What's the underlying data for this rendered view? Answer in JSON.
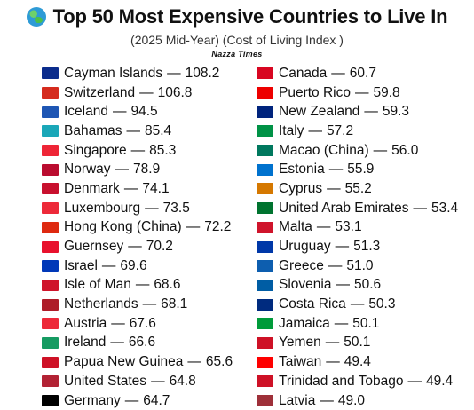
{
  "header": {
    "title": "Top 50 Most Expensive Countries to Live In",
    "subtitle": "(2025 Mid-Year) (Cost of Living Index )",
    "brand": "Nazza Times",
    "globe_icon": "globe-icon"
  },
  "separator": "—",
  "left_column": [
    {
      "country": "Cayman Islands",
      "value": "108.2",
      "flag": "#0b2c8c"
    },
    {
      "country": "Switzerland",
      "value": "106.8",
      "flag": "#d52b1e"
    },
    {
      "country": "Iceland",
      "value": "94.5",
      "flag": "#1e56b4"
    },
    {
      "country": "Bahamas",
      "value": "85.4",
      "flag": "#1aa7b8"
    },
    {
      "country": "Singapore",
      "value": "85.3",
      "flag": "#ee2536"
    },
    {
      "country": "Norway",
      "value": "78.9",
      "flag": "#ba0c2f"
    },
    {
      "country": "Denmark",
      "value": "74.1",
      "flag": "#c8102e"
    },
    {
      "country": "Luxembourg",
      "value": "73.5",
      "flag": "#ed2939"
    },
    {
      "country": "Hong Kong (China)",
      "value": "72.2",
      "flag": "#de2910"
    },
    {
      "country": "Guernsey",
      "value": "70.2",
      "flag": "#e8112d"
    },
    {
      "country": "Israel",
      "value": "69.6",
      "flag": "#0038b8"
    },
    {
      "country": "Isle of Man",
      "value": "68.6",
      "flag": "#cf142b"
    },
    {
      "country": "Netherlands",
      "value": "68.1",
      "flag": "#ae1c28"
    },
    {
      "country": "Austria",
      "value": "67.6",
      "flag": "#ed2939"
    },
    {
      "country": "Ireland",
      "value": "66.6",
      "flag": "#169b62"
    },
    {
      "country": "Papua New Guinea",
      "value": "65.6",
      "flag": "#ce1126"
    },
    {
      "country": "United States",
      "value": "64.8",
      "flag": "#b22234"
    },
    {
      "country": "Germany",
      "value": "64.7",
      "flag": "#000000"
    }
  ],
  "right_column": [
    {
      "country": "Canada",
      "value": "60.7",
      "flag": "#d80621"
    },
    {
      "country": "Puerto Rico",
      "value": "59.8",
      "flag": "#ed0000"
    },
    {
      "country": "New Zealand",
      "value": "59.3",
      "flag": "#00247d"
    },
    {
      "country": "Italy",
      "value": "57.2",
      "flag": "#009246"
    },
    {
      "country": "Macao (China)",
      "value": "56.0",
      "flag": "#00785e"
    },
    {
      "country": "Estonia",
      "value": "55.9",
      "flag": "#0072ce"
    },
    {
      "country": "Cyprus",
      "value": "55.2",
      "flag": "#d57800"
    },
    {
      "country": "United Arab Emirates",
      "value": "53.4",
      "flag": "#00732f"
    },
    {
      "country": "Malta",
      "value": "53.1",
      "flag": "#cf142b"
    },
    {
      "country": "Uruguay",
      "value": "51.3",
      "flag": "#0038a8"
    },
    {
      "country": "Greece",
      "value": "51.0",
      "flag": "#0d5eaf"
    },
    {
      "country": "Slovenia",
      "value": "50.6",
      "flag": "#005da4"
    },
    {
      "country": "Costa Rica",
      "value": "50.3",
      "flag": "#002b7f"
    },
    {
      "country": "Jamaica",
      "value": "50.1",
      "flag": "#009b3a"
    },
    {
      "country": "Yemen",
      "value": "50.1",
      "flag": "#ce1126"
    },
    {
      "country": "Taiwan",
      "value": "49.4",
      "flag": "#fe0000"
    },
    {
      "country": "Trinidad and Tobago",
      "value": "49.4",
      "flag": "#ce1126"
    },
    {
      "country": "Latvia",
      "value": "49.0",
      "flag": "#9e3039"
    }
  ]
}
